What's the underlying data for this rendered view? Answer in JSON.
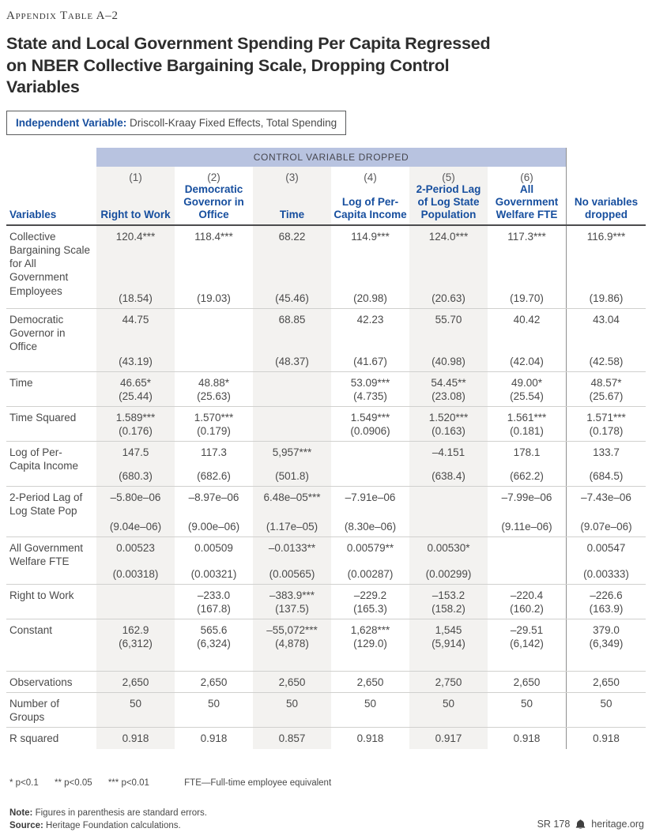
{
  "page": {
    "eyebrow": "Appendix Table A–2",
    "title": "State and Local Government Spending Per Capita Regressed on NBER Collective Bargaining Scale, Dropping Control Variables",
    "independent_variable_label": "Independent Variable:",
    "independent_variable_value": "Driscoll-Kraay Fixed Effects, Total Spending"
  },
  "table": {
    "band_label": "CONTROL VARIABLE DROPPED",
    "row_header": "Variables",
    "columns": [
      {
        "number": "(1)",
        "label": "Right to Work"
      },
      {
        "number": "(2)",
        "label": "Democratic Governor in Office"
      },
      {
        "number": "(3)",
        "label": "Time"
      },
      {
        "number": "(4)",
        "label": "Log of Per-Capita Income"
      },
      {
        "number": "(5)",
        "label": "2-Period Lag of Log State Population"
      },
      {
        "number": "(6)",
        "label": "All Government Welfare FTE"
      },
      {
        "number": "",
        "label": "No variables dropped"
      }
    ],
    "rows": [
      {
        "label": "Collective Bargaining Scale for All Government Employees",
        "coefs": [
          "120.4***",
          "118.4***",
          "68.22",
          "114.9***",
          "124.0***",
          "117.3***",
          "116.9***"
        ],
        "ses": [
          "(18.54)",
          "(19.03)",
          "(45.46)",
          "(20.98)",
          "(20.63)",
          "(19.70)",
          "(19.86)"
        ]
      },
      {
        "label": "Democratic Governor in Office",
        "coefs": [
          "44.75",
          "",
          "68.85",
          "42.23",
          "55.70",
          "40.42",
          "43.04"
        ],
        "ses": [
          "(43.19)",
          "",
          "(48.37)",
          "(41.67)",
          "(40.98)",
          "(42.04)",
          "(42.58)"
        ]
      },
      {
        "label": "Time",
        "coefs": [
          "46.65*",
          "48.88*",
          "",
          "53.09***",
          "54.45**",
          "49.00*",
          "48.57*"
        ],
        "ses": [
          "(25.44)",
          "(25.63)",
          "",
          "(4.735)",
          "(23.08)",
          "(25.54)",
          "(25.67)"
        ]
      },
      {
        "label": "Time Squared",
        "coefs": [
          "1.589***",
          "1.570***",
          "",
          "1.549***",
          "1.520***",
          "1.561***",
          "1.571***"
        ],
        "ses": [
          "(0.176)",
          "(0.179)",
          "",
          "(0.0906)",
          "(0.163)",
          "(0.181)",
          "(0.178)"
        ]
      },
      {
        "label": "Log of Per-Capita Income",
        "coefs": [
          "147.5",
          "117.3",
          "5,957***",
          "",
          "–4.151",
          "178.1",
          "133.7"
        ],
        "ses": [
          "(680.3)",
          "(682.6)",
          "(501.8)",
          "",
          "(638.4)",
          "(662.2)",
          "(684.5)"
        ]
      },
      {
        "label": "2-Period Lag of Log State Pop",
        "coefs": [
          "–5.80e–06",
          "–8.97e–06",
          "6.48e–05***",
          "–7.91e–06",
          "",
          "–7.99e–06",
          "–7.43e–06"
        ],
        "ses": [
          "(9.04e–06)",
          "(9.00e–06)",
          "(1.17e–05)",
          "(8.30e–06)",
          "",
          "(9.11e–06)",
          "(9.07e–06)"
        ]
      },
      {
        "label": "All Government Welfare FTE",
        "coefs": [
          "0.00523",
          "0.00509",
          "–0.0133**",
          "0.00579**",
          "0.00530*",
          "",
          "0.00547"
        ],
        "ses": [
          "(0.00318)",
          "(0.00321)",
          "(0.00565)",
          "(0.00287)",
          "(0.00299)",
          "",
          "(0.00333)"
        ]
      },
      {
        "label": "Right to Work",
        "coefs": [
          "",
          "–233.0",
          "–383.9***",
          "–229.2",
          "–153.2",
          "–220.4",
          "–226.6"
        ],
        "ses": [
          "",
          "(167.8)",
          "(137.5)",
          "(165.3)",
          "(158.2)",
          "(160.2)",
          "(163.9)"
        ]
      },
      {
        "label": "Constant",
        "coefs": [
          "162.9",
          "565.6",
          "–55,072***",
          "1,628***",
          "1,545",
          "–29.51",
          "379.0"
        ],
        "ses": [
          "(6,312)",
          "(6,324)",
          "(4,878)",
          "(129.0)",
          "(5,914)",
          "(6,142)",
          "(6,349)"
        ]
      }
    ],
    "stats": [
      {
        "label": "Observations",
        "values": [
          "2,650",
          "2,650",
          "2,650",
          "2,650",
          "2,750",
          "2,650",
          "2,650"
        ]
      },
      {
        "label": "Number of Groups",
        "values": [
          "50",
          "50",
          "50",
          "50",
          "50",
          "50",
          "50"
        ]
      },
      {
        "label": "R squared",
        "values": [
          "0.918",
          "0.918",
          "0.857",
          "0.918",
          "0.917",
          "0.918",
          "0.918"
        ]
      }
    ]
  },
  "footnotes": {
    "sig_levels": [
      "* p<0.1",
      "** p<0.05",
      "*** p<0.01"
    ],
    "abbreviation": "FTE—Full-time employee equivalent"
  },
  "footer": {
    "note_label": "Note:",
    "note_text": "Figures in parenthesis are standard errors.",
    "source_label": "Source:",
    "source_text": "Heritage Foundation calculations.",
    "report_id": "SR 178",
    "site": "heritage.org"
  },
  "colors": {
    "accent_blue": "#164e9e",
    "band_blue": "#b8c3e0",
    "stripe_gray": "#f3f2f0"
  }
}
